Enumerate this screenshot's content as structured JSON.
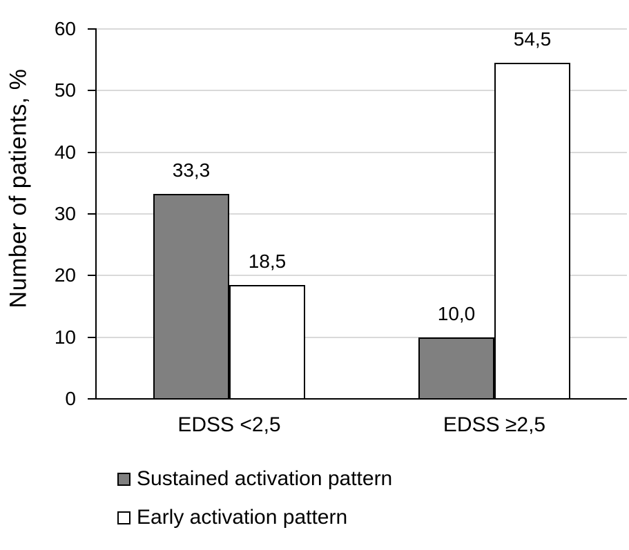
{
  "chart_data": {
    "type": "bar",
    "title": "",
    "xlabel": "",
    "ylabel": "Number of patients, %",
    "categories": [
      "EDSS <2,5",
      "EDSS ≥2,5"
    ],
    "series": [
      {
        "name": "Sustained activation pattern",
        "color": "#808080",
        "values": [
          33.3,
          10.0
        ],
        "labels": [
          "33,3",
          "10,0"
        ]
      },
      {
        "name": "Early activation pattern",
        "color": "#ffffff",
        "values": [
          18.5,
          54.5
        ],
        "labels": [
          "18,5",
          "54,5"
        ]
      }
    ],
    "ylim": [
      0,
      60
    ],
    "ytick_step": 10,
    "ytick_labels": [
      "0",
      "10",
      "20",
      "30",
      "40",
      "50",
      "60"
    ],
    "grid": "horizontal",
    "gridline_color": "#d9d9d9",
    "axis_color": "#000000",
    "bar_border_color": "#000000",
    "text_color": "#000000",
    "legend_position": "bottom-left",
    "decimal_separator": ","
  }
}
